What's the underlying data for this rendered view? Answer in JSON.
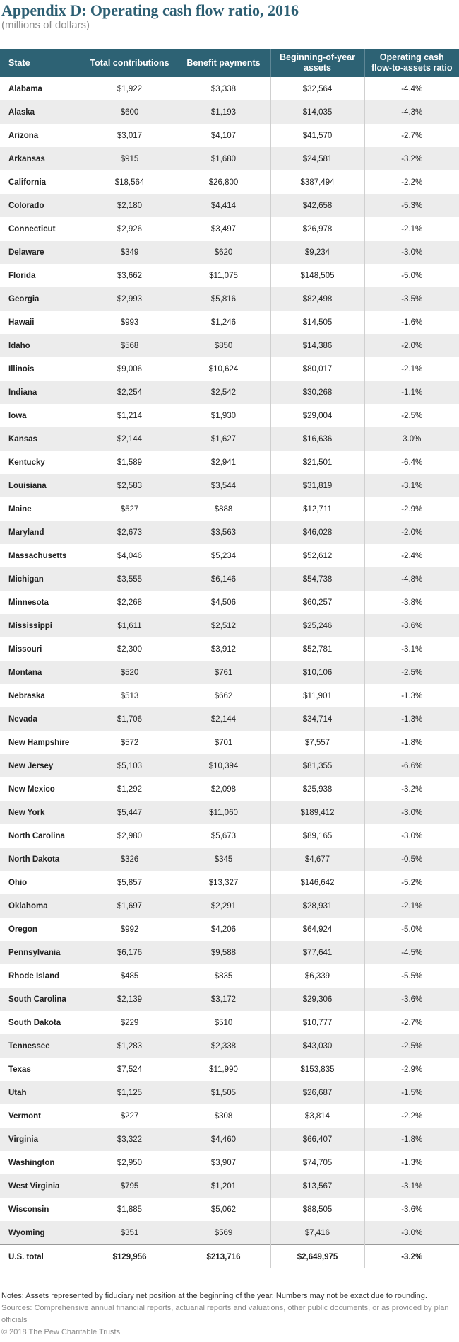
{
  "header": {
    "title": "Appendix D: Operating cash flow ratio, 2016",
    "subtitle": "(millions of dollars)"
  },
  "table": {
    "columns": [
      "State",
      "Total contributions",
      "Benefit payments",
      "Beginning-of-year assets",
      "Operating cash flow-to-assets ratio"
    ],
    "rows": [
      [
        "Alabama",
        "$1,922",
        "$3,338",
        "$32,564",
        "-4.4%"
      ],
      [
        "Alaska",
        "$600",
        "$1,193",
        "$14,035",
        "-4.3%"
      ],
      [
        "Arizona",
        "$3,017",
        "$4,107",
        "$41,570",
        "-2.7%"
      ],
      [
        "Arkansas",
        "$915",
        "$1,680",
        "$24,581",
        "-3.2%"
      ],
      [
        "California",
        "$18,564",
        "$26,800",
        "$387,494",
        "-2.2%"
      ],
      [
        "Colorado",
        "$2,180",
        "$4,414",
        "$42,658",
        "-5.3%"
      ],
      [
        "Connecticut",
        "$2,926",
        "$3,497",
        "$26,978",
        "-2.1%"
      ],
      [
        "Delaware",
        "$349",
        "$620",
        "$9,234",
        "-3.0%"
      ],
      [
        "Florida",
        "$3,662",
        "$11,075",
        "$148,505",
        "-5.0%"
      ],
      [
        "Georgia",
        "$2,993",
        "$5,816",
        "$82,498",
        "-3.5%"
      ],
      [
        "Hawaii",
        "$993",
        "$1,246",
        "$14,505",
        "-1.6%"
      ],
      [
        "Idaho",
        "$568",
        "$850",
        "$14,386",
        "-2.0%"
      ],
      [
        "Illinois",
        "$9,006",
        "$10,624",
        "$80,017",
        "-2.1%"
      ],
      [
        "Indiana",
        "$2,254",
        "$2,542",
        "$30,268",
        "-1.1%"
      ],
      [
        "Iowa",
        "$1,214",
        "$1,930",
        "$29,004",
        "-2.5%"
      ],
      [
        "Kansas",
        "$2,144",
        "$1,627",
        "$16,636",
        "3.0%"
      ],
      [
        "Kentucky",
        "$1,589",
        "$2,941",
        "$21,501",
        "-6.4%"
      ],
      [
        "Louisiana",
        "$2,583",
        "$3,544",
        "$31,819",
        "-3.1%"
      ],
      [
        "Maine",
        "$527",
        "$888",
        "$12,711",
        "-2.9%"
      ],
      [
        "Maryland",
        "$2,673",
        "$3,563",
        "$46,028",
        "-2.0%"
      ],
      [
        "Massachusetts",
        "$4,046",
        "$5,234",
        "$52,612",
        "-2.4%"
      ],
      [
        "Michigan",
        "$3,555",
        "$6,146",
        "$54,738",
        "-4.8%"
      ],
      [
        "Minnesota",
        "$2,268",
        "$4,506",
        "$60,257",
        "-3.8%"
      ],
      [
        "Mississippi",
        "$1,611",
        "$2,512",
        "$25,246",
        "-3.6%"
      ],
      [
        "Missouri",
        "$2,300",
        "$3,912",
        "$52,781",
        "-3.1%"
      ],
      [
        "Montana",
        "$520",
        "$761",
        "$10,106",
        "-2.5%"
      ],
      [
        "Nebraska",
        "$513",
        "$662",
        "$11,901",
        "-1.3%"
      ],
      [
        "Nevada",
        "$1,706",
        "$2,144",
        "$34,714",
        "-1.3%"
      ],
      [
        "New Hampshire",
        "$572",
        "$701",
        "$7,557",
        "-1.8%"
      ],
      [
        "New Jersey",
        "$5,103",
        "$10,394",
        "$81,355",
        "-6.6%"
      ],
      [
        "New Mexico",
        "$1,292",
        "$2,098",
        "$25,938",
        "-3.2%"
      ],
      [
        "New York",
        "$5,447",
        "$11,060",
        "$189,412",
        "-3.0%"
      ],
      [
        "North Carolina",
        "$2,980",
        "$5,673",
        "$89,165",
        "-3.0%"
      ],
      [
        "North Dakota",
        "$326",
        "$345",
        "$4,677",
        "-0.5%"
      ],
      [
        "Ohio",
        "$5,857",
        "$13,327",
        "$146,642",
        "-5.2%"
      ],
      [
        "Oklahoma",
        "$1,697",
        "$2,291",
        "$28,931",
        "-2.1%"
      ],
      [
        "Oregon",
        "$992",
        "$4,206",
        "$64,924",
        "-5.0%"
      ],
      [
        "Pennsylvania",
        "$6,176",
        "$9,588",
        "$77,641",
        "-4.5%"
      ],
      [
        "Rhode Island",
        "$485",
        "$835",
        "$6,339",
        "-5.5%"
      ],
      [
        "South Carolina",
        "$2,139",
        "$3,172",
        "$29,306",
        "-3.6%"
      ],
      [
        "South Dakota",
        "$229",
        "$510",
        "$10,777",
        "-2.7%"
      ],
      [
        "Tennessee",
        "$1,283",
        "$2,338",
        "$43,030",
        "-2.5%"
      ],
      [
        "Texas",
        "$7,524",
        "$11,990",
        "$153,835",
        "-2.9%"
      ],
      [
        "Utah",
        "$1,125",
        "$1,505",
        "$26,687",
        "-1.5%"
      ],
      [
        "Vermont",
        "$227",
        "$308",
        "$3,814",
        "-2.2%"
      ],
      [
        "Virginia",
        "$3,322",
        "$4,460",
        "$66,407",
        "-1.8%"
      ],
      [
        "Washington",
        "$2,950",
        "$3,907",
        "$74,705",
        "-1.3%"
      ],
      [
        "West Virginia",
        "$795",
        "$1,201",
        "$13,567",
        "-3.1%"
      ],
      [
        "Wisconsin",
        "$1,885",
        "$5,062",
        "$88,505",
        "-3.6%"
      ],
      [
        "Wyoming",
        "$351",
        "$569",
        "$7,416",
        "-3.0%"
      ]
    ],
    "total": [
      "U.S. total",
      "$129,956",
      "$213,716",
      "$2,649,975",
      "-3.2%"
    ]
  },
  "footer": {
    "note": "Notes: Assets represented by fiduciary net position at the beginning of the year. Numbers may not be exact due to rounding.",
    "sources": "Sources: Comprehensive annual financial reports, actuarial reports and valuations, other public documents, or as provided by plan officials",
    "copyright": "© 2018 The Pew Charitable Trusts"
  }
}
